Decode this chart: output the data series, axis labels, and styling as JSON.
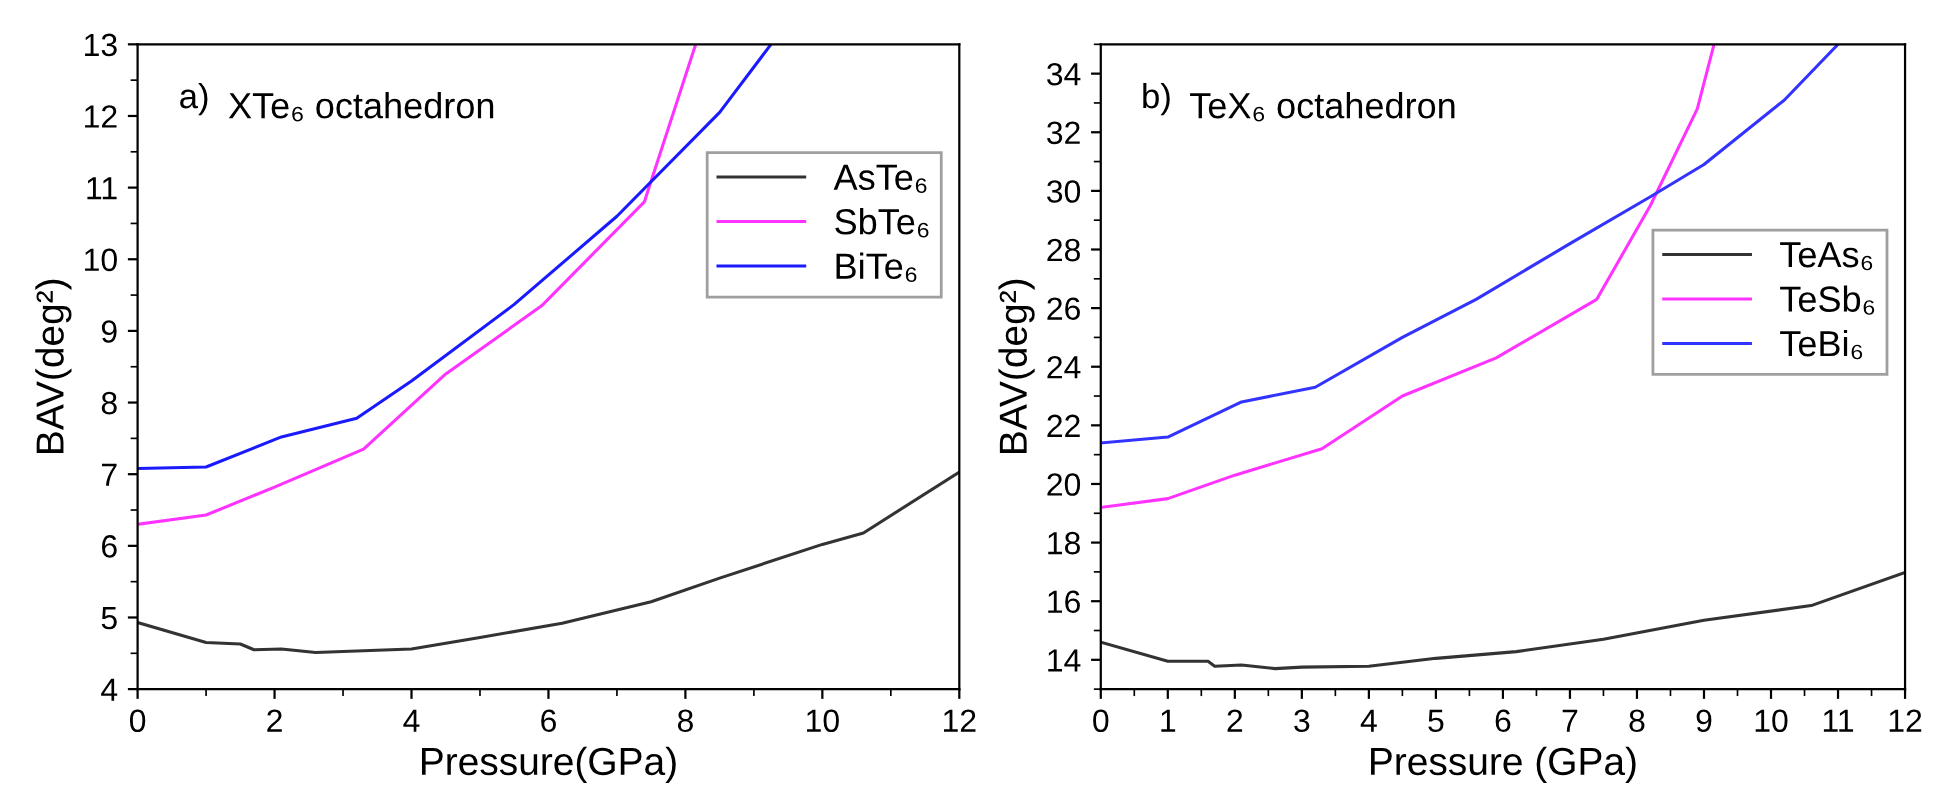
{
  "chart_data": [
    {
      "type": "line",
      "xlabel": "Pressure(GPa)",
      "ylabel": "BAV(deg²)",
      "annotations": [
        "a)",
        "XTe₆ octahedron"
      ],
      "xlim": [
        0,
        12
      ],
      "ylim": [
        4,
        13
      ],
      "xticks": [
        0,
        2,
        4,
        6,
        8,
        10,
        12
      ],
      "yticks": [
        4,
        5,
        6,
        7,
        8,
        9,
        10,
        11,
        12,
        13
      ],
      "legend": "right",
      "grid": false,
      "series": [
        {
          "name": "AsTe₆",
          "color": "#333333",
          "x": [
            0,
            1,
            1.5,
            1.7,
            2.1,
            2.6,
            3.1,
            4,
            5,
            6.2,
            7.5,
            8.5,
            10,
            10.6,
            12
          ],
          "values": [
            4.93,
            4.65,
            4.63,
            4.55,
            4.56,
            4.51,
            4.53,
            4.56,
            4.72,
            4.92,
            5.22,
            5.55,
            6.02,
            6.18,
            7.03
          ]
        },
        {
          "name": "SbTe₆",
          "color": "#ff33ff",
          "x": [
            0,
            1,
            2,
            3.3,
            4.5,
            5.9,
            7.4,
            8.15
          ],
          "values": [
            6.3,
            6.43,
            6.82,
            7.35,
            8.4,
            9.35,
            10.8,
            13
          ]
        },
        {
          "name": "BiTe₆",
          "color": "#1a1aff",
          "x": [
            0,
            1,
            2.1,
            3.2,
            4,
            5.5,
            7,
            8.5,
            9.25
          ],
          "values": [
            7.08,
            7.1,
            7.52,
            7.78,
            8.3,
            9.37,
            10.6,
            12.05,
            13
          ]
        }
      ]
    },
    {
      "type": "line",
      "xlabel": "Pressure (GPa)",
      "ylabel": "BAV(deg²)",
      "annotations": [
        "b)",
        "TeX₆ octahedron"
      ],
      "xlim": [
        0,
        12
      ],
      "ylim": [
        13,
        35
      ],
      "xticks": [
        0,
        1,
        2,
        3,
        4,
        5,
        6,
        7,
        8,
        9,
        10,
        11,
        12
      ],
      "yticks": [
        14,
        16,
        18,
        20,
        22,
        24,
        26,
        28,
        30,
        32,
        34
      ],
      "legend": "right",
      "grid": false,
      "series": [
        {
          "name": "TeAs₆",
          "color": "#333333",
          "x": [
            0,
            1,
            1.6,
            1.7,
            2.1,
            2.6,
            3,
            4,
            5,
            6.2,
            7.5,
            9,
            10.6,
            12
          ],
          "values": [
            14.6,
            13.95,
            13.95,
            13.78,
            13.82,
            13.7,
            13.75,
            13.78,
            14.05,
            14.28,
            14.7,
            15.35,
            15.85,
            16.98
          ]
        },
        {
          "name": "TeSb₆",
          "color": "#ff33ff",
          "x": [
            0,
            1,
            2,
            3.3,
            4.5,
            5.9,
            7.4,
            8.2,
            8.9,
            9.15
          ],
          "values": [
            19.2,
            19.5,
            20.3,
            21.2,
            23,
            24.3,
            26.3,
            29.5,
            32.8,
            35
          ]
        },
        {
          "name": "TeBi₆",
          "color": "#3333ff",
          "x": [
            0,
            1,
            2.1,
            3.2,
            4.5,
            5.6,
            7,
            8.2,
            9,
            10.2,
            11
          ],
          "values": [
            21.4,
            21.6,
            22.8,
            23.3,
            25,
            26.3,
            28.2,
            29.8,
            30.9,
            33.1,
            35
          ]
        }
      ]
    }
  ]
}
